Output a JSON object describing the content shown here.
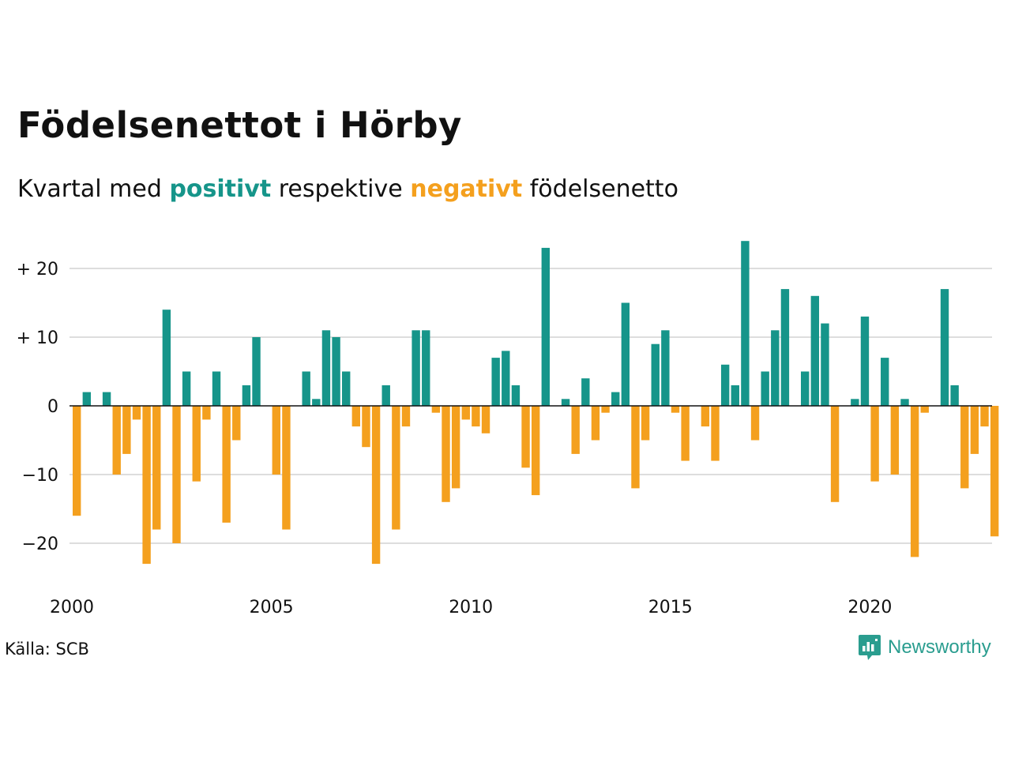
{
  "title": "Födelsenettot i Hörby",
  "subtitle": {
    "prefix": "Kvartal med",
    "positive": "positivt",
    "middle": "respektive",
    "negative": "negativt",
    "suffix": "födelsenetto"
  },
  "source": "Källa: SCB",
  "brand": {
    "name": "Newsworthy",
    "icon": "newsworthy-logo-icon"
  },
  "colors": {
    "positive": "#16958a",
    "negative": "#f4a01e",
    "grid": "#dddddd",
    "zero": "#111111"
  },
  "chart_data": {
    "type": "bar",
    "title": "Födelsenettot i Hörby",
    "xlabel": "",
    "ylabel": "",
    "ylim": [
      -25,
      24
    ],
    "y_ticks": [
      20,
      10,
      0,
      -10,
      -20
    ],
    "y_tick_labels": [
      "+ 20",
      "+ 10",
      "0",
      "−10",
      "−20"
    ],
    "x_ticks": [
      2000,
      2005,
      2010,
      2015,
      2020
    ],
    "x_tick_labels": [
      "2000",
      "2005",
      "2010",
      "2015",
      "2020"
    ],
    "categories_start": "2000 Q1",
    "frequency": "quarterly",
    "grid": true,
    "values": [
      -16,
      2,
      0,
      2,
      -10,
      -7,
      -2,
      -23,
      -18,
      14,
      -20,
      5,
      -11,
      -2,
      5,
      -17,
      -5,
      3,
      10,
      0,
      -10,
      -18,
      0,
      5,
      1,
      11,
      10,
      5,
      -3,
      -6,
      -23,
      3,
      -18,
      -3,
      11,
      11,
      -1,
      -14,
      -12,
      -2,
      -3,
      -4,
      7,
      8,
      3,
      -9,
      -13,
      23,
      0,
      1,
      -7,
      4,
      -5,
      -1,
      2,
      15,
      -12,
      -5,
      9,
      11,
      -1,
      -8,
      0,
      -3,
      -8,
      6,
      3,
      24,
      -5,
      5,
      11,
      17,
      0,
      5,
      16,
      12,
      -14,
      0,
      1,
      13,
      -11,
      7,
      -10,
      1,
      -22,
      -1,
      0,
      17,
      3,
      -12,
      -7,
      -3,
      -19
    ]
  }
}
